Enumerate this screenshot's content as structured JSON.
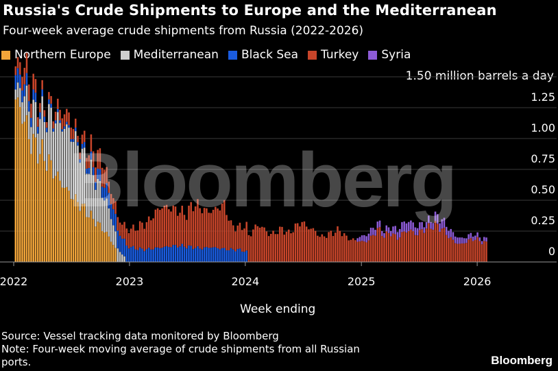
{
  "header": {
    "title": "Russia's Crude Shipments to Europe and the Mediterranean",
    "subtitle": "Four-week average crude shipments from Russia (2022-2026)"
  },
  "legend": [
    {
      "label": "Northern Europe",
      "color": "#f2a53a"
    },
    {
      "label": "Mediterranean",
      "color": "#cfcfcf"
    },
    {
      "label": "Black Sea",
      "color": "#1a5ce0"
    },
    {
      "label": "Turkey",
      "color": "#c8452a"
    },
    {
      "label": "Syria",
      "color": "#8d5bd6"
    }
  ],
  "watermark": "Bloomberg",
  "footer": {
    "source": "Source: Vessel tracking data monitored by Bloomberg",
    "note": "Note: Four-week moving average of crude shipments from all Russian ports.",
    "brand": "Bloomberg"
  },
  "chart_data": {
    "type": "bar",
    "stacked": true,
    "title": "Russia's Crude Shipments to Europe and the Mediterranean",
    "subtitle": "Four-week average crude shipments from Russia (2022-2026)",
    "xlabel": "Week ending",
    "ylabel": "million barrels a day",
    "unit_label": "1.50 million barrels a day",
    "ylim": [
      0,
      1.5
    ],
    "yticks": [
      0,
      0.25,
      0.5,
      0.75,
      1.0,
      1.25,
      1.5
    ],
    "ytick_labels": [
      "0",
      "0.25",
      "0.50",
      "0.75",
      "1.00",
      "1.25",
      "1.50 million barrels a day"
    ],
    "x_range": [
      "2022-01-01",
      "2026-06-01"
    ],
    "xticks": [
      "2022",
      "2023",
      "2024",
      "2025",
      "2026"
    ],
    "grid": true,
    "axis_position": "right",
    "legend_position": "top-left",
    "series": [
      {
        "name": "Northern Europe",
        "color": "#f2a53a",
        "segments": [
          {
            "from": "2022-01-01",
            "to": "2022-11-20",
            "values": [
              1.35,
              1.2,
              0.98,
              0.9,
              0.82,
              0.7,
              0.6,
              0.52,
              0.45,
              0.37,
              0.3,
              0.22,
              0.1
            ]
          }
        ]
      },
      {
        "name": "Mediterranean",
        "color": "#cfcfcf",
        "segments": [
          {
            "from": "2022-01-01",
            "to": "2022-12-20",
            "values": [
              0.05,
              0.2,
              0.25,
              0.3,
              0.4,
              0.47,
              0.5,
              0.45,
              0.38,
              0.33,
              0.25,
              0.12,
              0.03
            ]
          }
        ]
      },
      {
        "name": "Black Sea",
        "color": "#1a5ce0",
        "segments": [
          {
            "from": "2022-01-01",
            "to": "2024-01-10",
            "values": [
              0.12,
              0.1,
              0.08,
              0.05,
              0.03,
              0.02,
              0.02,
              0.03,
              0.05,
              0.08,
              0.12,
              0.14,
              0.13,
              0.11,
              0.1,
              0.11,
              0.12,
              0.13,
              0.13,
              0.12,
              0.11,
              0.12,
              0.11,
              0.1,
              0.1,
              0.08
            ]
          }
        ]
      },
      {
        "name": "Turkey",
        "color": "#c8452a",
        "segments": [
          {
            "from": "2022-01-01",
            "to": "2026-01-31",
            "values": [
              0.06,
              0.1,
              0.15,
              0.12,
              0.08,
              0.05,
              0.06,
              0.08,
              0.1,
              0.1,
              0.05,
              0.08,
              0.12,
              0.14,
              0.17,
              0.08,
              0.1,
              0.12,
              0.14,
              0.16,
              0.2,
              0.22,
              0.28,
              0.33,
              0.32,
              0.3,
              0.28,
              0.26,
              0.35,
              0.34,
              0.3,
              0.29,
              0.33,
              0.36,
              0.2,
              0.18,
              0.2,
              0.22,
              0.3,
              0.28,
              0.22,
              0.24,
              0.27,
              0.23,
              0.28,
              0.33,
              0.28,
              0.26,
              0.2,
              0.22,
              0.24,
              0.26,
              0.2,
              0.18,
              0.17,
              0.16,
              0.2,
              0.27,
              0.21,
              0.24,
              0.19,
              0.24,
              0.26,
              0.22,
              0.26,
              0.28,
              0.3,
              0.27,
              0.21,
              0.16,
              0.14,
              0.17,
              0.19,
              0.17,
              0.15
            ]
          }
        ]
      },
      {
        "name": "Syria",
        "color": "#8d5bd6",
        "segments": [
          {
            "from": "2024-12-20",
            "to": "2026-01-31",
            "values": [
              0.03,
              0.05,
              0.06,
              0.05,
              0.04,
              0.05,
              0.07,
              0.08,
              0.07,
              0.06,
              0.05,
              0.06,
              0.08,
              0.07,
              0.06,
              0.05,
              0.04,
              0.04,
              0.03,
              0.03
            ]
          }
        ]
      }
    ]
  }
}
